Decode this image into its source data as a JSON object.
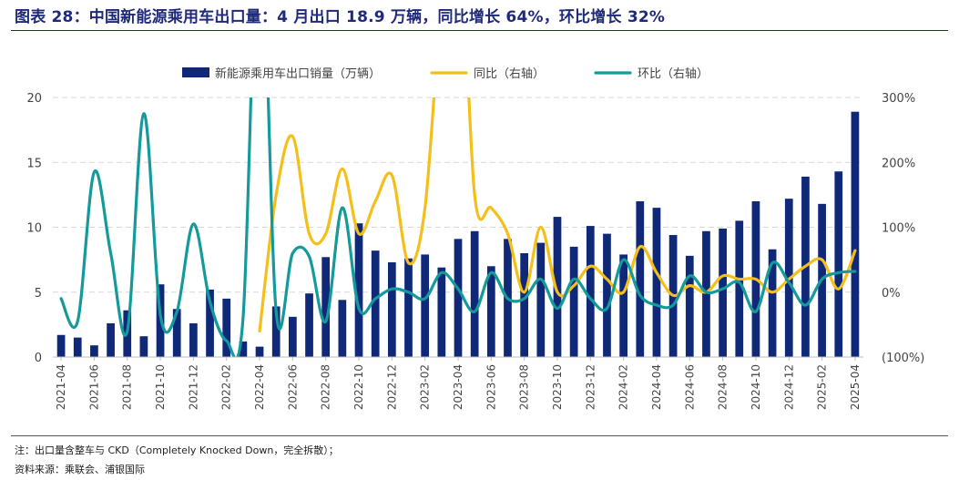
{
  "header": {
    "title": "图表 28：中国新能源乘用车出口量：4 月出口 18.9 万辆，同比增长 64%，环比增长 32%"
  },
  "footer": {
    "note": "注：出口量含整车与 CKD（Completely Knocked Down，完全拆散）；",
    "source": "资料来源：乘联会、浦银国际"
  },
  "colors": {
    "bar": "#0f2878",
    "yoy": "#f5bf1a",
    "mom": "#149a9a",
    "grid": "#d9d9d9",
    "title": "#1f2a7a"
  },
  "chart_data": {
    "type": "bar",
    "x": [
      "2021-04",
      "2021-05",
      "2021-06",
      "2021-07",
      "2021-08",
      "2021-09",
      "2021-10",
      "2021-11",
      "2021-12",
      "2022-01",
      "2022-02",
      "2022-03",
      "2022-04",
      "2022-05",
      "2022-06",
      "2022-07",
      "2022-08",
      "2022-09",
      "2022-10",
      "2022-11",
      "2022-12",
      "2023-01",
      "2023-02",
      "2023-03",
      "2023-04",
      "2023-05",
      "2023-06",
      "2023-07",
      "2023-08",
      "2023-09",
      "2023-10",
      "2023-11",
      "2023-12",
      "2024-01",
      "2024-02",
      "2024-03",
      "2024-04",
      "2024-05",
      "2024-06",
      "2024-07",
      "2024-08",
      "2024-09",
      "2024-10",
      "2024-11",
      "2024-12",
      "2025-01",
      "2025-02",
      "2025-03",
      "2025-04"
    ],
    "x_tick_labels": [
      "2021-04",
      "2021-06",
      "2021-08",
      "2021-10",
      "2021-12",
      "2022-02",
      "2022-04",
      "2022-06",
      "2022-08",
      "2022-10",
      "2022-12",
      "2023-02",
      "2023-04",
      "2023-06",
      "2023-08",
      "2023-10",
      "2023-12",
      "2024-02",
      "2024-04",
      "2024-06",
      "2024-08",
      "2024-10",
      "2024-12",
      "2025-02",
      "2025-04"
    ],
    "series": [
      {
        "name": "新能源乘用车出口销量（万辆）",
        "kind": "bar",
        "axis": "left",
        "values": [
          1.7,
          1.5,
          0.9,
          2.6,
          3.6,
          1.6,
          5.6,
          3.7,
          2.6,
          5.2,
          4.5,
          1.2,
          0.8,
          3.9,
          3.1,
          4.9,
          7.7,
          4.4,
          10.3,
          8.2,
          7.3,
          7.6,
          7.9,
          6.9,
          9.1,
          9.7,
          7.0,
          9.1,
          8.0,
          8.8,
          10.8,
          8.5,
          10.1,
          9.5,
          7.9,
          12.0,
          11.5,
          9.4,
          7.8,
          9.7,
          9.9,
          10.5,
          12.0,
          8.3,
          12.2,
          13.9,
          11.8,
          14.3,
          18.9
        ]
      },
      {
        "name": "同比（右轴）",
        "kind": "line",
        "axis": "right",
        "values": [
          null,
          null,
          null,
          null,
          null,
          null,
          null,
          null,
          null,
          null,
          null,
          null,
          -60,
          150,
          240,
          90,
          90,
          190,
          90,
          140,
          180,
          45,
          130,
          450,
          600,
          150,
          130,
          90,
          0,
          100,
          0,
          10,
          40,
          20,
          0,
          70,
          30,
          -5,
          10,
          0,
          25,
          20,
          20,
          0,
          20,
          40,
          50,
          5,
          64
        ]
      },
      {
        "name": "环比（右轴）",
        "kind": "line",
        "axis": "right",
        "values": [
          -10,
          -45,
          185,
          60,
          -60,
          275,
          -35,
          -30,
          105,
          -15,
          -75,
          -40,
          600,
          -30,
          60,
          55,
          -45,
          130,
          -25,
          -10,
          5,
          0,
          -10,
          30,
          5,
          -30,
          30,
          -10,
          -10,
          20,
          -25,
          20,
          -10,
          -25,
          50,
          -5,
          -20,
          -20,
          25,
          0,
          5,
          15,
          -30,
          45,
          15,
          -20,
          20,
          30,
          32
        ]
      }
    ],
    "left_axis": {
      "ylim": [
        0,
        20
      ],
      "ticks": [
        "0",
        "5",
        "10",
        "15",
        "20"
      ]
    },
    "right_axis": {
      "ylim": [
        -100,
        300
      ],
      "ticks": [
        "(100%)",
        "0%",
        "100%",
        "200%",
        "300%"
      ]
    },
    "grid": "horizontal dashed",
    "legend_position": "top-center"
  }
}
